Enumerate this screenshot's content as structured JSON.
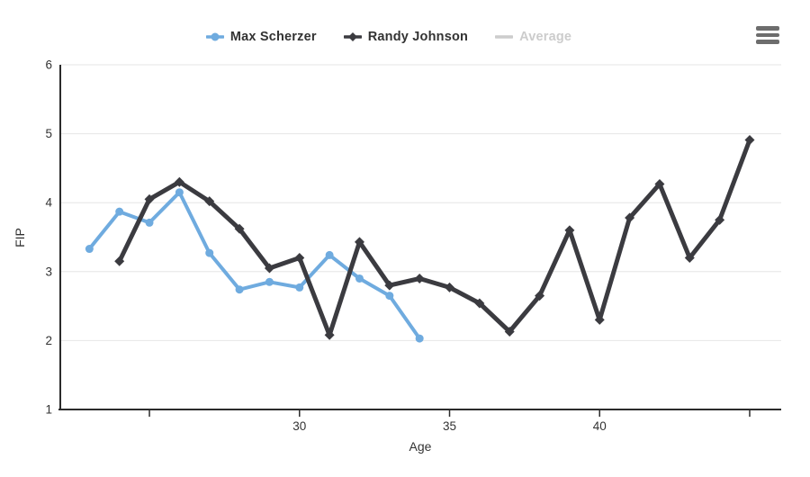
{
  "legend": {
    "items": [
      {
        "label": "Max Scherzer",
        "color": "#6fabdf",
        "marker": "circle",
        "disabled": false
      },
      {
        "label": "Randy Johnson",
        "color": "#3b3b40",
        "marker": "diamond",
        "disabled": false
      },
      {
        "label": "Average",
        "color": "#cccccc",
        "marker": "line",
        "disabled": true
      }
    ]
  },
  "menu": {
    "icon": "hamburger-icon"
  },
  "chart_data": {
    "type": "line",
    "title": "",
    "xlabel": "Age",
    "ylabel": "FIP",
    "xlim": [
      22.03,
      46.05
    ],
    "ylim": [
      1,
      6
    ],
    "yticks": [
      1,
      2,
      3,
      4,
      5,
      6
    ],
    "xticks": [
      25,
      30,
      35,
      40,
      45
    ],
    "xtick_labels": [
      "",
      "30",
      "35",
      "40",
      ""
    ],
    "grid": "horizontal",
    "grid_color": "#e6e6e6",
    "axis_color": "#2b2b2b",
    "legend_position": "top",
    "series": [
      {
        "name": "Max Scherzer",
        "color": "#6fabdf",
        "marker": "circle",
        "line_width": 4,
        "visible": true,
        "x": [
          23,
          24,
          25,
          26,
          27,
          28,
          29,
          30,
          31,
          32,
          33,
          34
        ],
        "y": [
          3.33,
          3.87,
          3.71,
          4.15,
          3.27,
          2.74,
          2.85,
          2.77,
          3.24,
          2.9,
          2.65,
          2.03
        ]
      },
      {
        "name": "Randy Johnson",
        "color": "#3b3b40",
        "marker": "diamond",
        "line_width": 5,
        "visible": true,
        "x": [
          24,
          25,
          26,
          27,
          28,
          29,
          30,
          31,
          32,
          33,
          34,
          35,
          36,
          37,
          38,
          39,
          40,
          41,
          42,
          43,
          44,
          45
        ],
        "y": [
          3.15,
          4.05,
          4.3,
          4.02,
          3.62,
          3.05,
          3.2,
          2.08,
          3.43,
          2.8,
          2.9,
          2.77,
          2.54,
          2.13,
          2.65,
          3.6,
          2.3,
          3.78,
          4.27,
          3.2,
          3.75,
          4.91
        ]
      },
      {
        "name": "Average",
        "color": "#cccccc",
        "marker": "line",
        "line_width": 4,
        "visible": false,
        "x": [],
        "y": []
      }
    ]
  }
}
